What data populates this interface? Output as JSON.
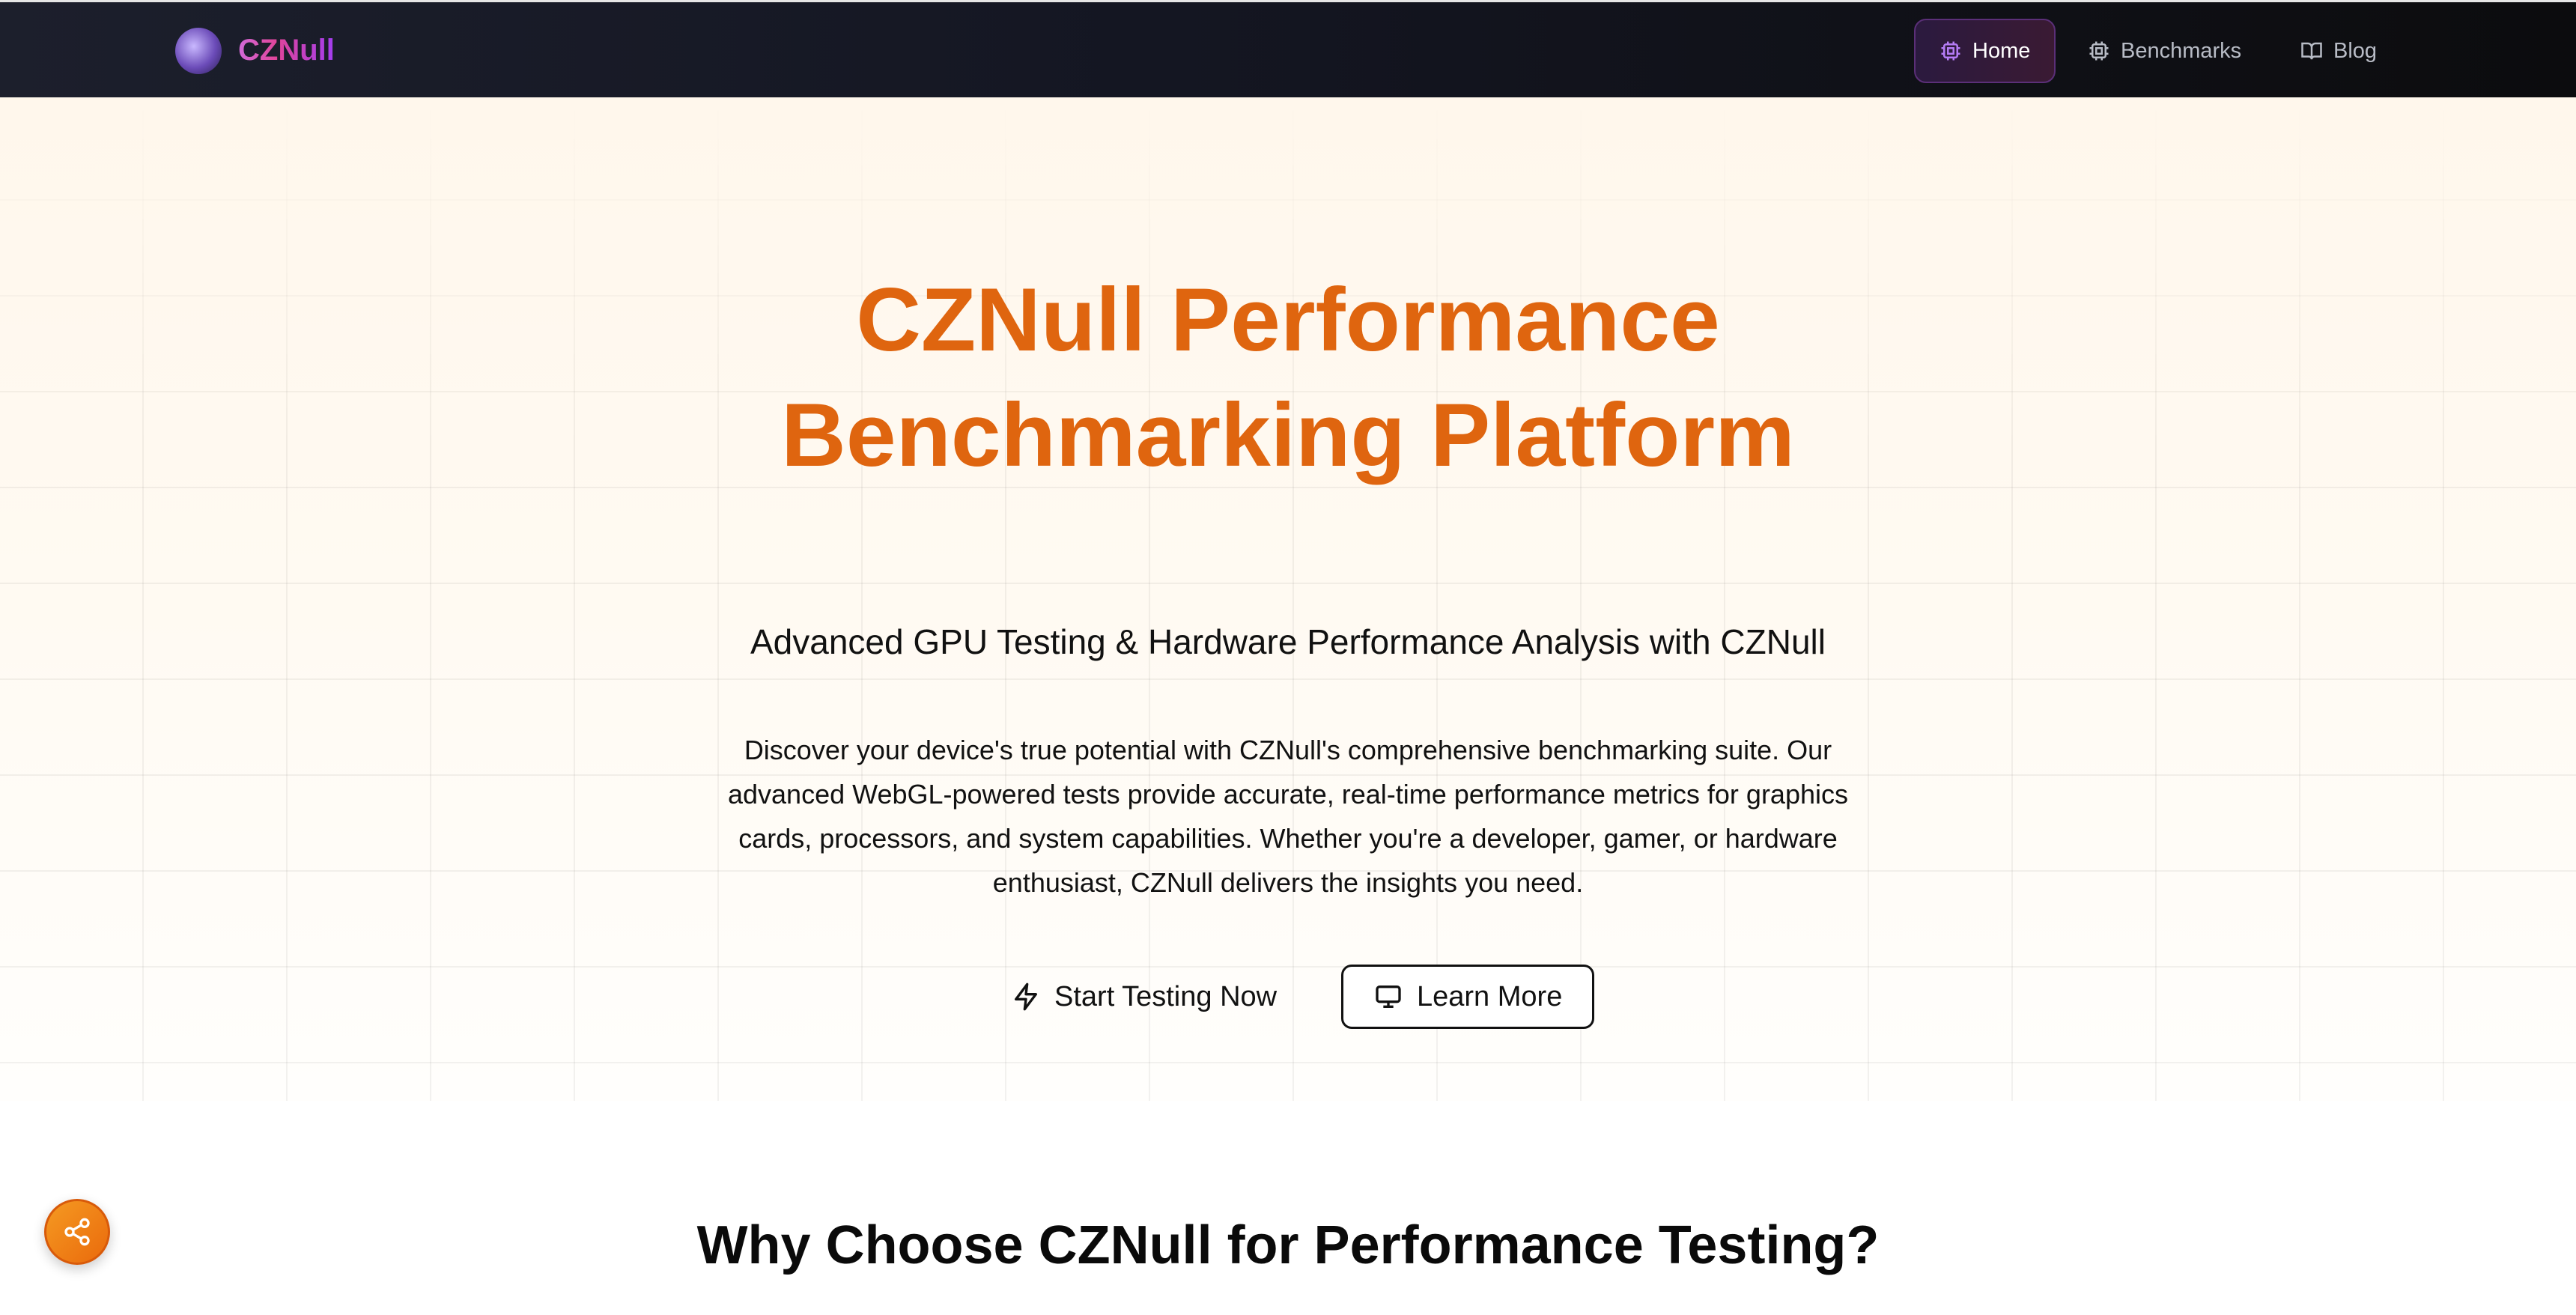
{
  "header": {
    "brand": "CZNull",
    "nav": [
      {
        "label": "Home",
        "icon": "cpu-icon",
        "active": true
      },
      {
        "label": "Benchmarks",
        "icon": "cpu-icon"
      },
      {
        "label": "Blog",
        "icon": "book-open-icon"
      }
    ]
  },
  "hero": {
    "title_line1": "CZNull Performance",
    "title_line2": "Benchmarking Platform",
    "subtitle": "Advanced GPU Testing & Hardware Performance Analysis with CZNull",
    "description": "Discover your device's true potential with CZNull's comprehensive benchmarking suite. Our advanced WebGL-powered tests provide accurate, real-time performance metrics for graphics cards, processors, and system capabilities. Whether you're a developer, gamer, or hardware enthusiast, CZNull delivers the insights you need.",
    "primary_button": "Start Testing Now",
    "secondary_button": "Learn More"
  },
  "section": {
    "heading": "Why Choose CZNull for Performance Testing?"
  },
  "colors": {
    "accent": "#df650f",
    "brand_pink": "#e0449a",
    "brand_purple": "#a23df0",
    "header_bg": "#141622"
  }
}
